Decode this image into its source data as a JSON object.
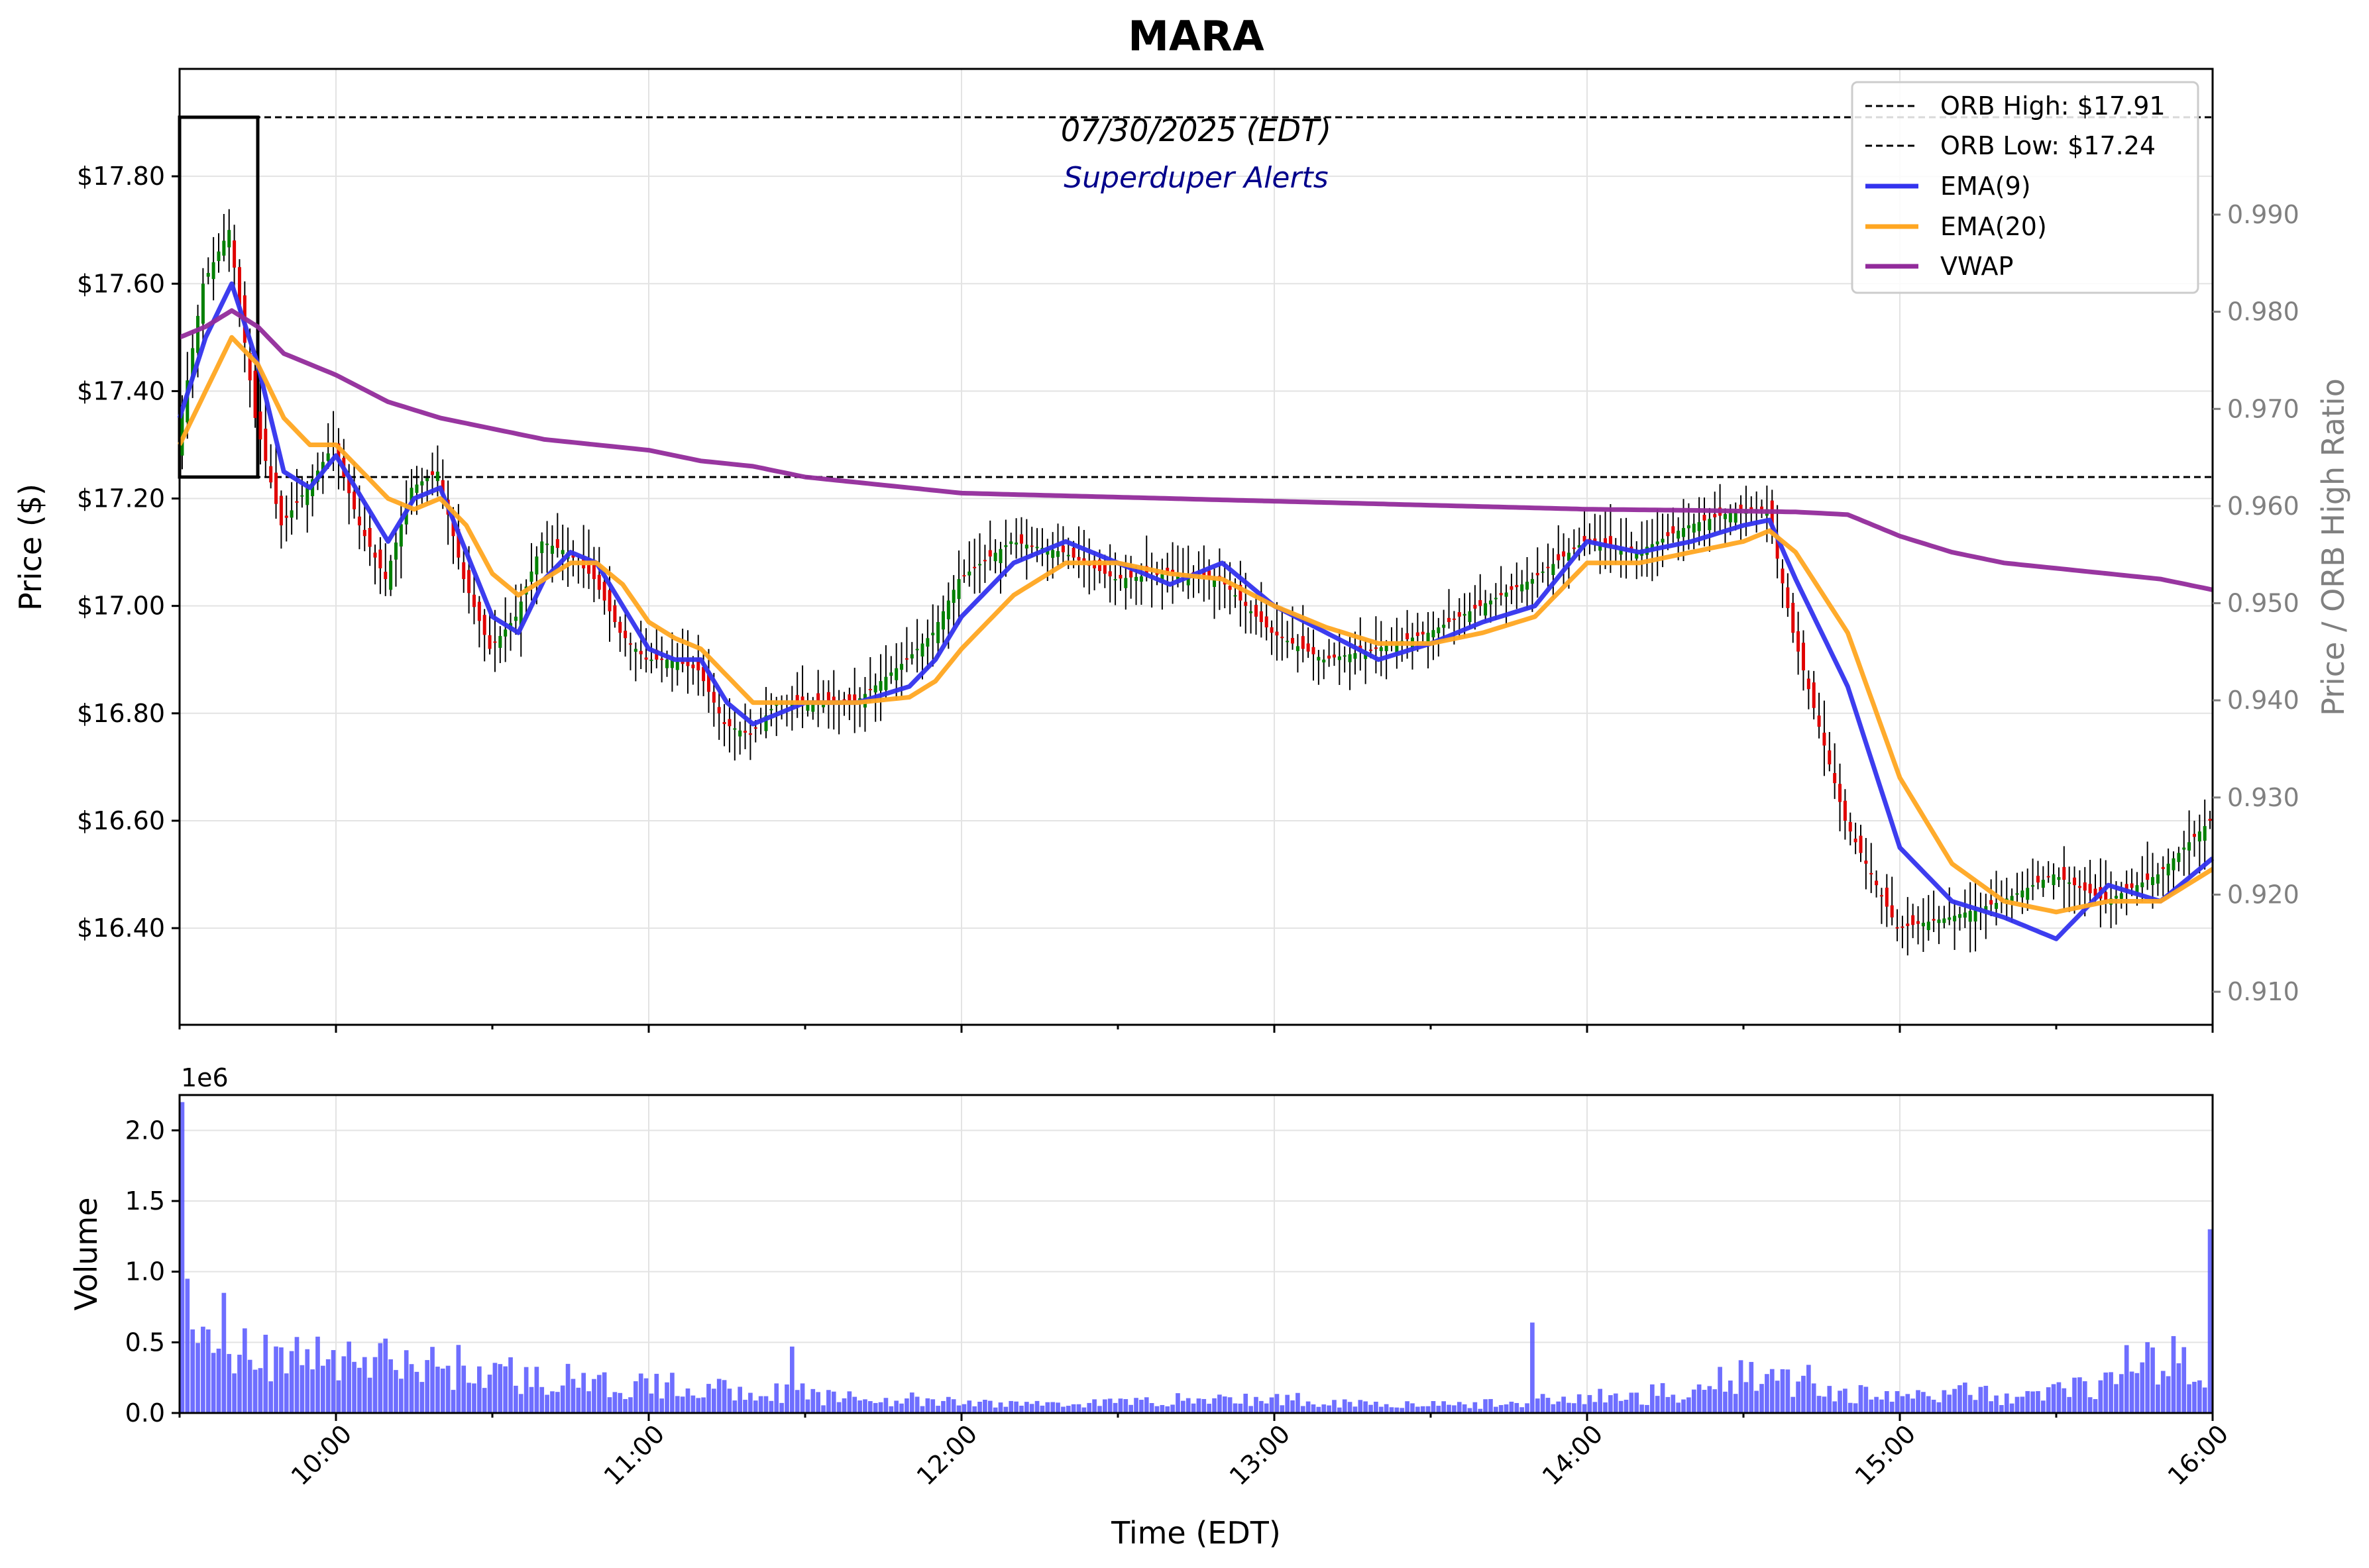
{
  "chart_data": [
    {
      "type": "candlestick",
      "title": "MARA",
      "annotation_date": "07/30/2025 (EDT)",
      "annotation_source": "Superduper Alerts",
      "ylabel": "Price ($)",
      "y2label": "Price / ORB High Ratio",
      "xlabel": "",
      "ylim": [
        16.22,
        18.0
      ],
      "y2lim": [
        0.9066,
        1.005
      ],
      "xlim": [
        "09:30",
        "16:00"
      ],
      "yticks": [
        16.4,
        16.6,
        16.8,
        17.0,
        17.2,
        17.4,
        17.6,
        17.8
      ],
      "ytick_labels": [
        "$16.40",
        "$16.60",
        "$16.80",
        "$17.00",
        "$17.20",
        "$17.40",
        "$17.60",
        "$17.80"
      ],
      "y2ticks": [
        0.91,
        0.92,
        0.93,
        0.94,
        0.95,
        0.96,
        0.97,
        0.98,
        0.99
      ],
      "y2tick_labels": [
        "0.910",
        "0.920",
        "0.930",
        "0.940",
        "0.950",
        "0.960",
        "0.970",
        "0.980",
        "0.990"
      ],
      "grid": true,
      "legend_placement": "upper right",
      "orb_box": {
        "start": "09:30",
        "end": "09:45",
        "low": 17.24,
        "high": 17.91
      },
      "hlines": [
        {
          "name": "ORB High: $17.91",
          "value": 17.91,
          "color": "#000000",
          "style": "dashed"
        },
        {
          "name": "ORB Low: $17.24",
          "value": 17.24,
          "color": "#000000",
          "style": "dashed"
        }
      ],
      "series": [
        {
          "name": "EMA(9)",
          "color": "#3333ee",
          "times": [
            "09:30",
            "09:35",
            "09:40",
            "09:45",
            "09:50",
            "09:55",
            "10:00",
            "10:05",
            "10:10",
            "10:15",
            "10:20",
            "10:25",
            "10:30",
            "10:35",
            "10:40",
            "10:45",
            "10:50",
            "10:55",
            "11:00",
            "11:05",
            "11:10",
            "11:15",
            "11:20",
            "11:25",
            "11:30",
            "11:40",
            "11:50",
            "11:55",
            "12:00",
            "12:10",
            "12:20",
            "12:30",
            "12:40",
            "12:50",
            "13:00",
            "13:10",
            "13:20",
            "13:30",
            "13:40",
            "13:50",
            "14:00",
            "14:10",
            "14:20",
            "14:30",
            "14:35",
            "14:40",
            "14:50",
            "15:00",
            "15:10",
            "15:20",
            "15:30",
            "15:40",
            "15:50",
            "16:00"
          ],
          "values": [
            17.35,
            17.5,
            17.6,
            17.45,
            17.25,
            17.22,
            17.28,
            17.2,
            17.12,
            17.2,
            17.22,
            17.1,
            16.98,
            16.95,
            17.05,
            17.1,
            17.08,
            17.0,
            16.92,
            16.9,
            16.9,
            16.82,
            16.78,
            16.8,
            16.82,
            16.82,
            16.85,
            16.9,
            16.98,
            17.08,
            17.12,
            17.08,
            17.04,
            17.08,
            17.0,
            16.95,
            16.9,
            16.93,
            16.97,
            17.0,
            17.12,
            17.1,
            17.12,
            17.15,
            17.16,
            17.05,
            16.85,
            16.55,
            16.45,
            16.42,
            16.38,
            16.48,
            16.45,
            16.53
          ]
        },
        {
          "name": "EMA(20)",
          "color": "#ffa621",
          "times": [
            "09:30",
            "09:35",
            "09:40",
            "09:45",
            "09:50",
            "09:55",
            "10:00",
            "10:05",
            "10:10",
            "10:15",
            "10:20",
            "10:25",
            "10:30",
            "10:35",
            "10:40",
            "10:45",
            "10:50",
            "10:55",
            "11:00",
            "11:05",
            "11:10",
            "11:15",
            "11:20",
            "11:25",
            "11:30",
            "11:40",
            "11:50",
            "11:55",
            "12:00",
            "12:10",
            "12:20",
            "12:30",
            "12:40",
            "12:50",
            "13:00",
            "13:10",
            "13:20",
            "13:30",
            "13:40",
            "13:50",
            "14:00",
            "14:10",
            "14:20",
            "14:30",
            "14:35",
            "14:40",
            "14:50",
            "15:00",
            "15:10",
            "15:20",
            "15:30",
            "15:40",
            "15:50",
            "16:00"
          ],
          "values": [
            17.3,
            17.4,
            17.5,
            17.45,
            17.35,
            17.3,
            17.3,
            17.25,
            17.2,
            17.18,
            17.2,
            17.15,
            17.06,
            17.02,
            17.05,
            17.08,
            17.08,
            17.04,
            16.97,
            16.94,
            16.92,
            16.87,
            16.82,
            16.82,
            16.82,
            16.82,
            16.83,
            16.86,
            16.92,
            17.02,
            17.08,
            17.08,
            17.06,
            17.05,
            17.0,
            16.96,
            16.93,
            16.93,
            16.95,
            16.98,
            17.08,
            17.08,
            17.1,
            17.12,
            17.14,
            17.1,
            16.95,
            16.68,
            16.52,
            16.45,
            16.43,
            16.45,
            16.45,
            16.51
          ]
        },
        {
          "name": "VWAP",
          "color": "#922b9b",
          "times": [
            "09:30",
            "09:35",
            "09:40",
            "09:45",
            "09:50",
            "10:00",
            "10:10",
            "10:20",
            "10:30",
            "10:40",
            "10:50",
            "11:00",
            "11:10",
            "11:20",
            "11:30",
            "11:40",
            "11:50",
            "12:00",
            "12:20",
            "12:40",
            "13:00",
            "13:20",
            "13:40",
            "14:00",
            "14:20",
            "14:40",
            "14:50",
            "15:00",
            "15:10",
            "15:20",
            "15:30",
            "15:40",
            "15:50",
            "16:00"
          ],
          "values": [
            17.5,
            17.52,
            17.55,
            17.52,
            17.47,
            17.43,
            17.38,
            17.35,
            17.33,
            17.31,
            17.3,
            17.29,
            17.27,
            17.26,
            17.24,
            17.23,
            17.22,
            17.21,
            17.205,
            17.2,
            17.195,
            17.19,
            17.185,
            17.18,
            17.178,
            17.175,
            17.17,
            17.13,
            17.1,
            17.08,
            17.07,
            17.06,
            17.05,
            17.03
          ]
        }
      ],
      "ohlc_path": {
        "times": [
          "09:30",
          "09:35",
          "09:40",
          "09:45",
          "09:50",
          "09:55",
          "10:00",
          "10:05",
          "10:10",
          "10:15",
          "10:20",
          "10:25",
          "10:30",
          "10:35",
          "10:40",
          "10:45",
          "10:50",
          "10:55",
          "11:00",
          "11:05",
          "11:10",
          "11:15",
          "11:20",
          "11:25",
          "11:30",
          "11:40",
          "11:50",
          "11:55",
          "12:00",
          "12:10",
          "12:20",
          "12:30",
          "12:40",
          "12:50",
          "13:00",
          "13:10",
          "13:20",
          "13:30",
          "13:40",
          "13:50",
          "14:00",
          "14:10",
          "14:20",
          "14:30",
          "14:35",
          "14:40",
          "14:50",
          "15:00",
          "15:10",
          "15:20",
          "15:30",
          "15:40",
          "15:50",
          "16:00"
        ],
        "values": [
          17.3,
          17.6,
          17.7,
          17.35,
          17.15,
          17.22,
          17.3,
          17.15,
          17.05,
          17.22,
          17.25,
          17.05,
          16.92,
          16.98,
          17.12,
          17.1,
          17.05,
          16.95,
          16.9,
          16.9,
          16.88,
          16.78,
          16.76,
          16.82,
          16.82,
          16.82,
          16.9,
          16.95,
          17.05,
          17.12,
          17.1,
          17.05,
          17.06,
          17.05,
          16.95,
          16.9,
          16.92,
          16.95,
          17.0,
          17.05,
          17.12,
          17.1,
          17.15,
          17.18,
          17.18,
          16.95,
          16.6,
          16.4,
          16.42,
          16.45,
          16.5,
          16.45,
          16.5,
          16.6
        ]
      }
    },
    {
      "type": "bar",
      "name": "volume",
      "ylabel": "Volume",
      "xlabel": "Time (EDT)",
      "y_offset_label": "1e6",
      "ylim": [
        0,
        2.25
      ],
      "yticks": [
        0.0,
        0.5,
        1.0,
        1.5,
        2.0
      ],
      "ytick_labels": [
        "0.0",
        "0.5",
        "1.0",
        "1.5",
        "2.0"
      ],
      "color": "#5555ff",
      "xticks": [
        "10:00",
        "11:00",
        "12:00",
        "13:00",
        "14:00",
        "15:00",
        "16:00"
      ],
      "grid": true,
      "notable_values": [
        {
          "time": "09:30",
          "value": 2.2
        },
        {
          "time": "09:31",
          "value": 0.95
        },
        {
          "time": "09:38",
          "value": 0.85
        },
        {
          "time": "11:27",
          "value": 0.47
        },
        {
          "time": "13:49",
          "value": 0.64
        },
        {
          "time": "15:59",
          "value": 1.3
        }
      ],
      "baseline_values": [
        0.5,
        0.45,
        0.4,
        0.38,
        0.35,
        0.3,
        0.25,
        0.2,
        0.2,
        0.18,
        0.15,
        0.12,
        0.1,
        0.08,
        0.07,
        0.07,
        0.08,
        0.1,
        0.1,
        0.1,
        0.08,
        0.07,
        0.06,
        0.07,
        0.1,
        0.12,
        0.15,
        0.3,
        0.25,
        0.15,
        0.12,
        0.15,
        0.12,
        0.2,
        0.35,
        0.4
      ]
    }
  ]
}
